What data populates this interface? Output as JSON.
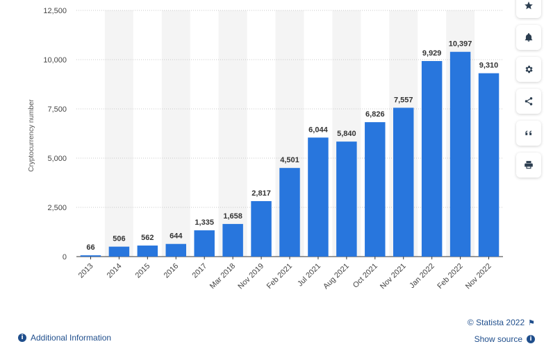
{
  "chart_data": {
    "type": "bar",
    "categories": [
      "2013",
      "2014",
      "2015",
      "2016",
      "2017",
      "Mar 2018",
      "Nov 2019",
      "Feb 2021",
      "Jul 2021",
      "Aug 2021",
      "Oct 2021",
      "Nov 2021",
      "Jan 2022",
      "Feb 2022",
      "Nov 2022"
    ],
    "values": [
      66,
      506,
      562,
      644,
      1335,
      1658,
      2817,
      4501,
      6044,
      5840,
      6826,
      7557,
      9929,
      10397,
      9310
    ],
    "value_labels": [
      "66",
      "506",
      "562",
      "644",
      "1,335",
      "1,658",
      "2,817",
      "4,501",
      "6,044",
      "5,840",
      "6,826",
      "7,557",
      "9,929",
      "10,397",
      "9,310"
    ],
    "ylabel": "Cryptocurrency number",
    "ylim": [
      0,
      12500
    ],
    "yticks": [
      0,
      2500,
      5000,
      7500,
      10000,
      12500
    ],
    "ytick_labels": [
      "0",
      "2,500",
      "5,000",
      "7,500",
      "10,000",
      "12,500"
    ],
    "grid": true,
    "bar_color": "#2876dd"
  },
  "footer": {
    "additional_info": "Additional Information",
    "copyright": "© Statista 2022",
    "show_source": "Show source"
  },
  "toolbar": {
    "icons": [
      "star-icon",
      "bell-icon",
      "gear-icon",
      "share-icon",
      "quote-icon",
      "print-icon"
    ]
  }
}
